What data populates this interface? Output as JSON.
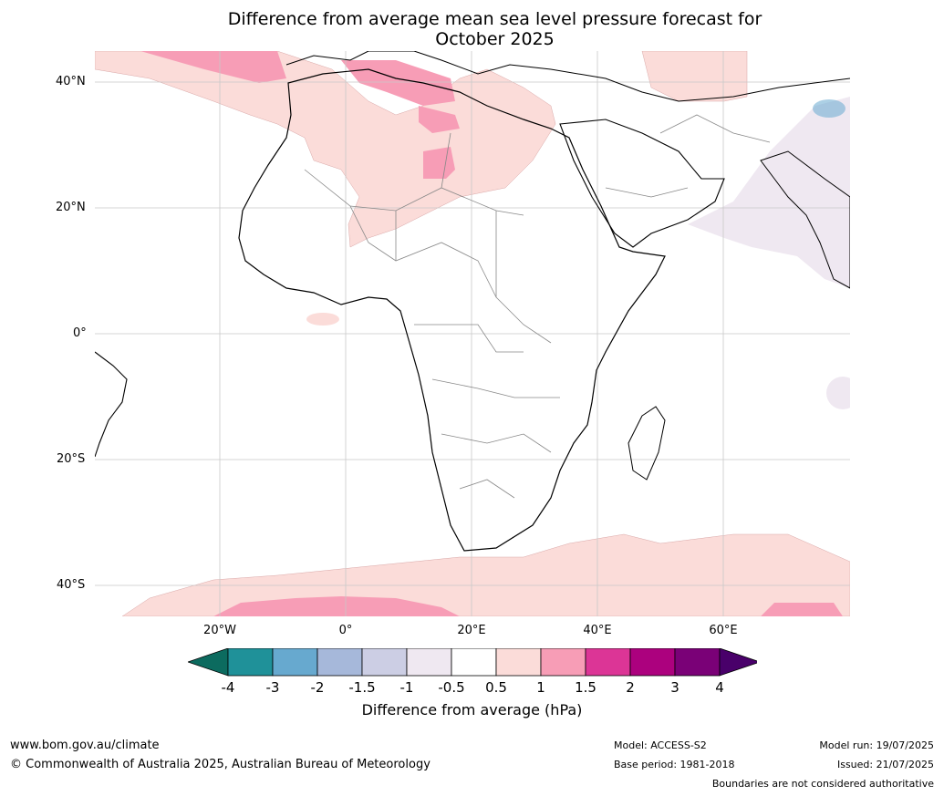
{
  "title": {
    "line1": "Difference from average mean sea level pressure forecast for",
    "line2": "October 2025"
  },
  "map": {
    "lat_labels": [
      "40°N",
      "20°N",
      "0°",
      "20°S",
      "40°S"
    ],
    "lon_labels": [
      "20°W",
      "0°",
      "20°E",
      "40°E",
      "60°E"
    ]
  },
  "colorbar": {
    "labels": [
      "-4",
      "-3",
      "-2",
      "-1.5",
      "-1",
      "-0.5",
      "0.5",
      "1",
      "1.5",
      "2",
      "3",
      "4"
    ],
    "colors": [
      "#0c6b5f",
      "#1f9199",
      "#67a9cf",
      "#a6b8da",
      "#ccceе4",
      "#efe8f1",
      "#ffffff",
      "#fbdcd9",
      "#f79db6",
      "#dc3596",
      "#ac017e",
      "#7a0177",
      "#49006a"
    ],
    "title": "Difference from average (hPa)"
  },
  "footer": {
    "url": "www.bom.gov.au/climate",
    "copyright": "© Commonwealth of Australia 2025, Australian Bureau of Meteorology",
    "model": "Model: ACCESS-S2",
    "base_period": "Base period: 1981-2018",
    "model_run": "Model run: 19/07/2025",
    "issued": "Issued: 21/07/2025",
    "disclaimer": "Boundaries are not considered authoritative"
  }
}
